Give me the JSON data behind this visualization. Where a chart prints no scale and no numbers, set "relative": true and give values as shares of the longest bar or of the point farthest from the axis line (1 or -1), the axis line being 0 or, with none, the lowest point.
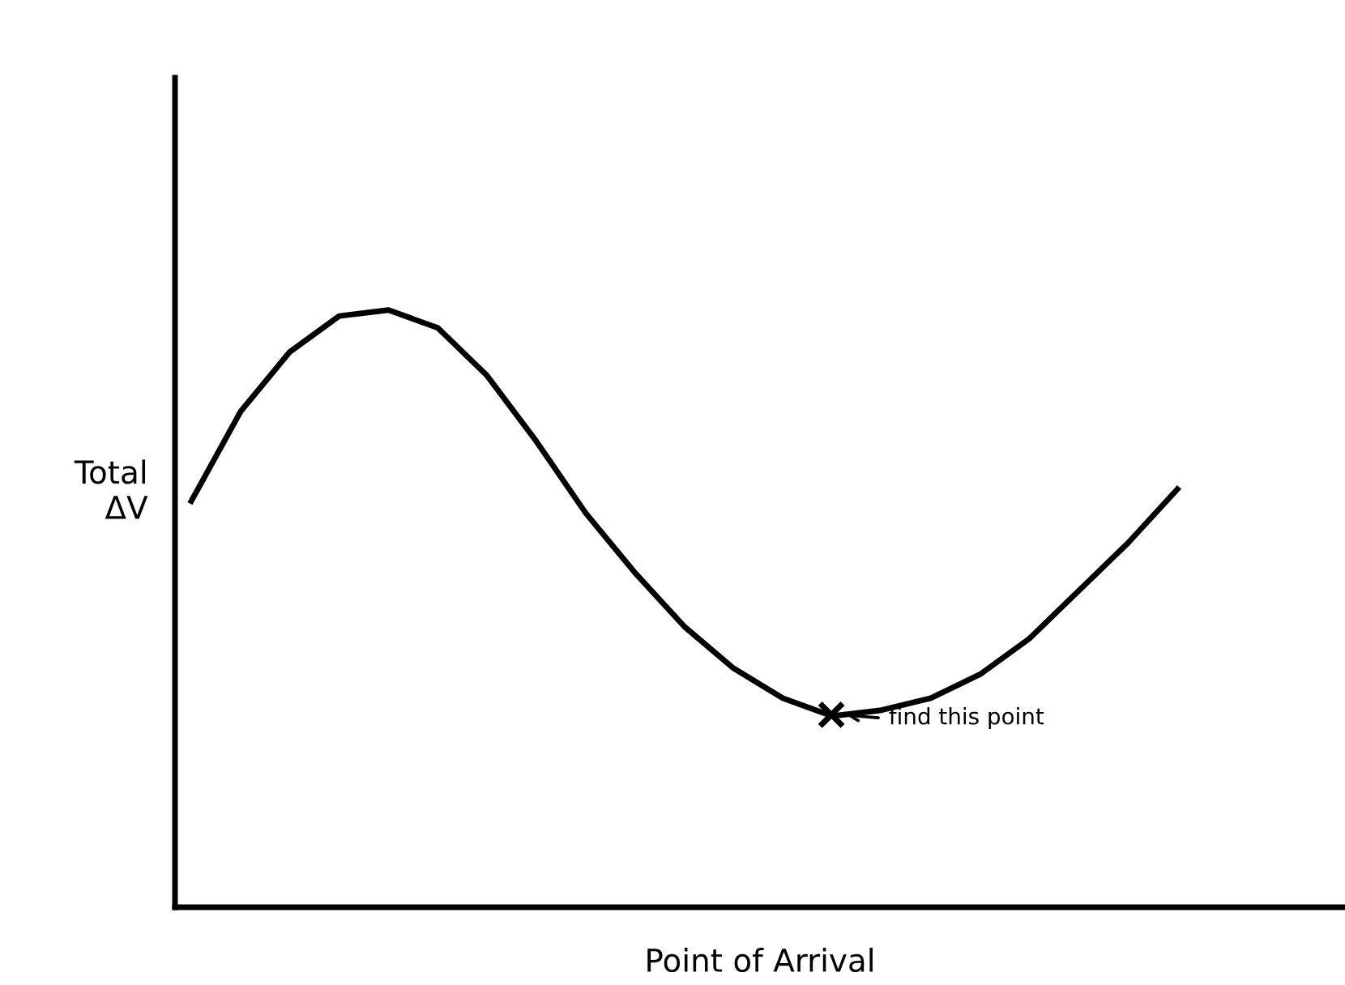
{
  "chart_data": {
    "type": "line",
    "relative": true,
    "xlabel": "Point of Arrival",
    "ylabel": "Total\nΔV",
    "categories": [
      null,
      null,
      null,
      null,
      null,
      null,
      null,
      null,
      null,
      null,
      null,
      null,
      null,
      null,
      null,
      null,
      null,
      null,
      null,
      null,
      null
    ],
    "series": [
      {
        "color": "#000000",
        "values": [
          0.68,
          0.83,
          0.93,
          0.99,
          1.0,
          0.97,
          0.89,
          0.78,
          0.66,
          0.56,
          0.47,
          0.4,
          0.35,
          0.32,
          0.33,
          0.35,
          0.39,
          0.45,
          0.53,
          0.61,
          0.7
        ]
      }
    ],
    "annotations": [
      "find this point"
    ],
    "legend": false,
    "marker": "none",
    "line_style": "solid"
  }
}
